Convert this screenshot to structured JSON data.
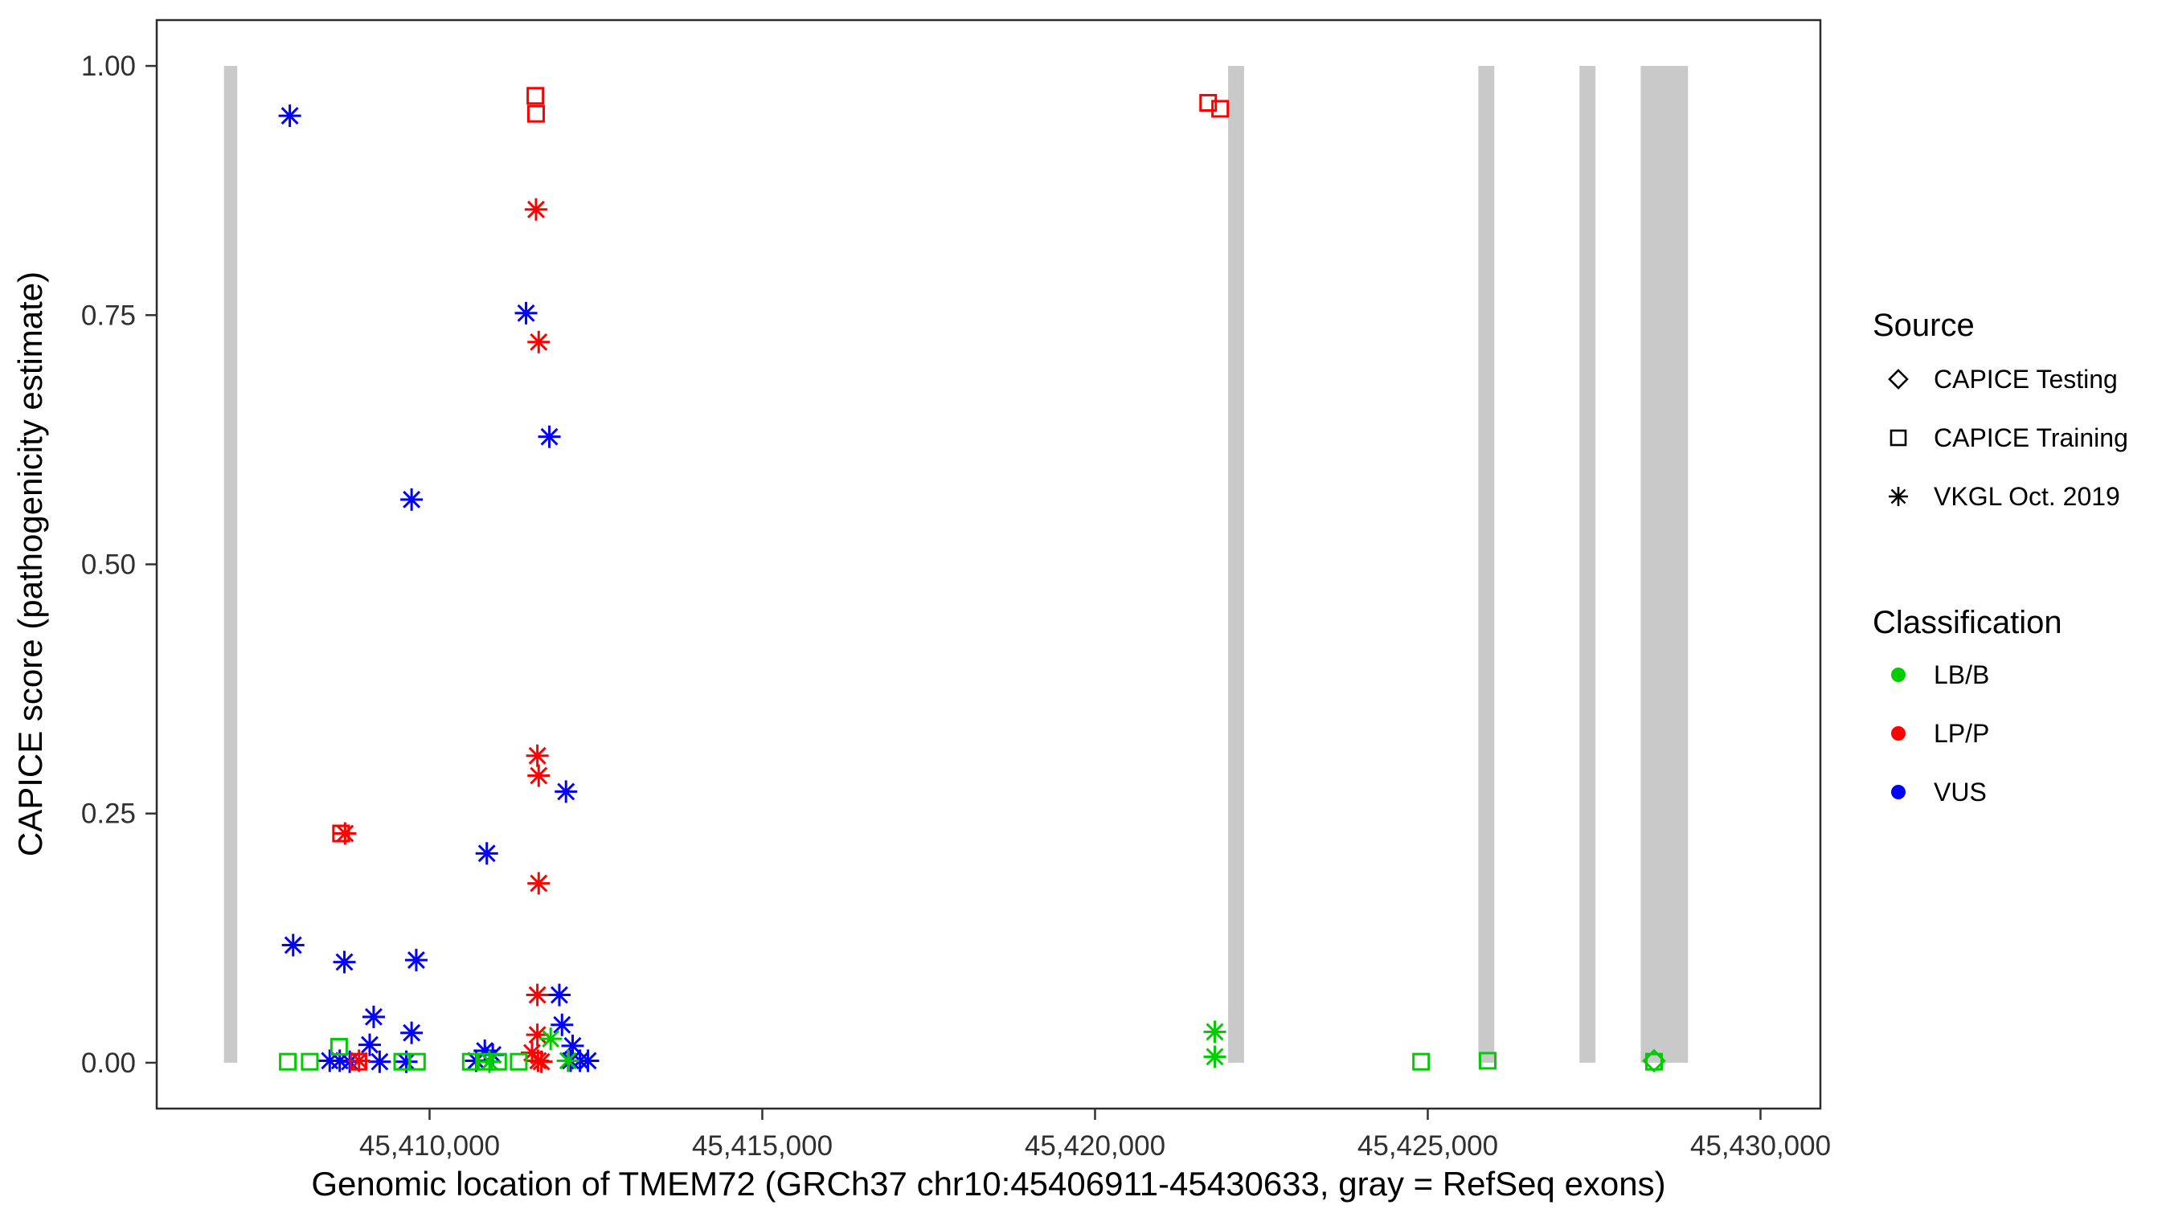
{
  "chart_data": {
    "type": "scatter",
    "title": "",
    "xlabel": "Genomic location of TMEM72 (GRCh37 chr10:45406911-45430633, gray = RefSeq exons)",
    "ylabel": "CAPICE score (pathogenicity estimate)",
    "xlim": [
      45405900,
      45430900
    ],
    "ylim": [
      -0.046,
      1.046
    ],
    "grid": "none",
    "background": "#FFFFFF",
    "panel_border_color": "#2B2B2B",
    "xticks": [
      {
        "value": 45410000,
        "label": "45,410,000"
      },
      {
        "value": 45415000,
        "label": "45,415,000"
      },
      {
        "value": 45420000,
        "label": "45,420,000"
      },
      {
        "value": 45425000,
        "label": "45,425,000"
      },
      {
        "value": 45430000,
        "label": "45,430,000"
      }
    ],
    "yticks": [
      {
        "value": 0.0,
        "label": "0.00"
      },
      {
        "value": 0.25,
        "label": "0.25"
      },
      {
        "value": 0.5,
        "label": "0.50"
      },
      {
        "value": 0.75,
        "label": "0.75"
      },
      {
        "value": 1.0,
        "label": "1.00"
      }
    ],
    "exons": {
      "color": "#C9C9C9",
      "meaning": "gray = RefSeq exons",
      "ranges": [
        [
          45406911,
          45407110
        ],
        [
          45422000,
          45422240
        ],
        [
          45425760,
          45426000
        ],
        [
          45427280,
          45427520
        ],
        [
          45428200,
          45428910
        ]
      ]
    },
    "sources": {
      "testing": {
        "label": "CAPICE Testing",
        "shape": "diamond"
      },
      "training": {
        "label": "CAPICE Training",
        "shape": "square"
      },
      "vkgl": {
        "label": "VKGL Oct. 2019",
        "shape": "asterisk"
      }
    },
    "classifications": {
      "LB/B": {
        "color": "#00CC00"
      },
      "LP/P": {
        "color": "#FF0000"
      },
      "VUS": {
        "color": "#0000FF"
      }
    },
    "legend": {
      "source": {
        "title": "Source",
        "items": [
          {
            "shape": "diamond",
            "label": "CAPICE Testing"
          },
          {
            "shape": "square",
            "label": "CAPICE Training"
          },
          {
            "shape": "asterisk",
            "label": "VKGL Oct. 2019"
          }
        ]
      },
      "classification": {
        "title": "Classification",
        "items": [
          {
            "color": "#00CC00",
            "label": "LB/B"
          },
          {
            "color": "#FF0000",
            "label": "LP/P"
          },
          {
            "color": "#0000FF",
            "label": "VUS"
          }
        ]
      }
    },
    "points": [
      {
        "x": 45407900,
        "y": 0.95,
        "src": "vkgl",
        "cls": "VUS"
      },
      {
        "x": 45407950,
        "y": 0.118,
        "src": "vkgl",
        "cls": "VUS"
      },
      {
        "x": 45408500,
        "y": 0.002,
        "src": "vkgl",
        "cls": "VUS"
      },
      {
        "x": 45408650,
        "y": 0.002,
        "src": "vkgl",
        "cls": "VUS"
      },
      {
        "x": 45408720,
        "y": 0.101,
        "src": "vkgl",
        "cls": "VUS"
      },
      {
        "x": 45408800,
        "y": 0.001,
        "src": "vkgl",
        "cls": "VUS"
      },
      {
        "x": 45409100,
        "y": 0.018,
        "src": "vkgl",
        "cls": "VUS"
      },
      {
        "x": 45409160,
        "y": 0.046,
        "src": "vkgl",
        "cls": "VUS"
      },
      {
        "x": 45409250,
        "y": 0.001,
        "src": "vkgl",
        "cls": "VUS"
      },
      {
        "x": 45409650,
        "y": 0.001,
        "src": "vkgl",
        "cls": "VUS"
      },
      {
        "x": 45409730,
        "y": 0.565,
        "src": "vkgl",
        "cls": "VUS"
      },
      {
        "x": 45409730,
        "y": 0.03,
        "src": "vkgl",
        "cls": "VUS"
      },
      {
        "x": 45409800,
        "y": 0.103,
        "src": "vkgl",
        "cls": "VUS"
      },
      {
        "x": 45410700,
        "y": 0.002,
        "src": "vkgl",
        "cls": "VUS"
      },
      {
        "x": 45410830,
        "y": 0.012,
        "src": "vkgl",
        "cls": "VUS"
      },
      {
        "x": 45410860,
        "y": 0.21,
        "src": "vkgl",
        "cls": "VUS"
      },
      {
        "x": 45410950,
        "y": 0.008,
        "src": "vkgl",
        "cls": "VUS"
      },
      {
        "x": 45411450,
        "y": 0.752,
        "src": "vkgl",
        "cls": "VUS"
      },
      {
        "x": 45411800,
        "y": 0.628,
        "src": "vkgl",
        "cls": "VUS"
      },
      {
        "x": 45411950,
        "y": 0.068,
        "src": "vkgl",
        "cls": "VUS"
      },
      {
        "x": 45411990,
        "y": 0.038,
        "src": "vkgl",
        "cls": "VUS"
      },
      {
        "x": 45412050,
        "y": 0.272,
        "src": "vkgl",
        "cls": "VUS"
      },
      {
        "x": 45412120,
        "y": 0.002,
        "src": "vkgl",
        "cls": "VUS"
      },
      {
        "x": 45412150,
        "y": 0.017,
        "src": "vkgl",
        "cls": "VUS"
      },
      {
        "x": 45412260,
        "y": 0.002,
        "src": "vkgl",
        "cls": "VUS"
      },
      {
        "x": 45412380,
        "y": 0.002,
        "src": "vkgl",
        "cls": "VUS"
      },
      {
        "x": 45408670,
        "y": 0.23,
        "src": "training",
        "cls": "LP/P"
      },
      {
        "x": 45408930,
        "y": 0.001,
        "src": "training",
        "cls": "LP/P"
      },
      {
        "x": 45411590,
        "y": 0.97,
        "src": "training",
        "cls": "LP/P"
      },
      {
        "x": 45411600,
        "y": 0.952,
        "src": "training",
        "cls": "LP/P"
      },
      {
        "x": 45421700,
        "y": 0.963,
        "src": "training",
        "cls": "LP/P"
      },
      {
        "x": 45421880,
        "y": 0.957,
        "src": "training",
        "cls": "LP/P"
      },
      {
        "x": 45408730,
        "y": 0.23,
        "src": "vkgl",
        "cls": "LP/P"
      },
      {
        "x": 45408940,
        "y": 0.002,
        "src": "vkgl",
        "cls": "LP/P"
      },
      {
        "x": 45411540,
        "y": 0.01,
        "src": "vkgl",
        "cls": "LP/P"
      },
      {
        "x": 45411600,
        "y": 0.856,
        "src": "vkgl",
        "cls": "LP/P"
      },
      {
        "x": 45411620,
        "y": 0.308,
        "src": "vkgl",
        "cls": "LP/P"
      },
      {
        "x": 45411620,
        "y": 0.068,
        "src": "vkgl",
        "cls": "LP/P"
      },
      {
        "x": 45411620,
        "y": 0.028,
        "src": "vkgl",
        "cls": "LP/P"
      },
      {
        "x": 45411630,
        "y": 0.002,
        "src": "vkgl",
        "cls": "LP/P"
      },
      {
        "x": 45411640,
        "y": 0.723,
        "src": "vkgl",
        "cls": "LP/P"
      },
      {
        "x": 45411640,
        "y": 0.288,
        "src": "vkgl",
        "cls": "LP/P"
      },
      {
        "x": 45411640,
        "y": 0.18,
        "src": "vkgl",
        "cls": "LP/P"
      },
      {
        "x": 45411680,
        "y": 0.001,
        "src": "vkgl",
        "cls": "LP/P"
      },
      {
        "x": 45407870,
        "y": 0.001,
        "src": "training",
        "cls": "LB/B"
      },
      {
        "x": 45408200,
        "y": 0.001,
        "src": "training",
        "cls": "LB/B"
      },
      {
        "x": 45408640,
        "y": 0.016,
        "src": "training",
        "cls": "LB/B"
      },
      {
        "x": 45409590,
        "y": 0.001,
        "src": "training",
        "cls": "LB/B"
      },
      {
        "x": 45409810,
        "y": 0.001,
        "src": "training",
        "cls": "LB/B"
      },
      {
        "x": 45410620,
        "y": 0.001,
        "src": "training",
        "cls": "LB/B"
      },
      {
        "x": 45410820,
        "y": 0.001,
        "src": "training",
        "cls": "LB/B"
      },
      {
        "x": 45411030,
        "y": 0.001,
        "src": "training",
        "cls": "LB/B"
      },
      {
        "x": 45411340,
        "y": 0.001,
        "src": "training",
        "cls": "LB/B"
      },
      {
        "x": 45424900,
        "y": 0.001,
        "src": "training",
        "cls": "LB/B"
      },
      {
        "x": 45425900,
        "y": 0.002,
        "src": "training",
        "cls": "LB/B"
      },
      {
        "x": 45428400,
        "y": 0.001,
        "src": "training",
        "cls": "LB/B"
      },
      {
        "x": 45410900,
        "y": 0.001,
        "src": "vkgl",
        "cls": "LB/B"
      },
      {
        "x": 45411820,
        "y": 0.024,
        "src": "vkgl",
        "cls": "LB/B"
      },
      {
        "x": 45412080,
        "y": 0.002,
        "src": "vkgl",
        "cls": "LB/B"
      },
      {
        "x": 45421800,
        "y": 0.031,
        "src": "vkgl",
        "cls": "LB/B"
      },
      {
        "x": 45421800,
        "y": 0.006,
        "src": "vkgl",
        "cls": "LB/B"
      },
      {
        "x": 45428400,
        "y": 0.002,
        "src": "testing",
        "cls": "LB/B"
      }
    ]
  }
}
